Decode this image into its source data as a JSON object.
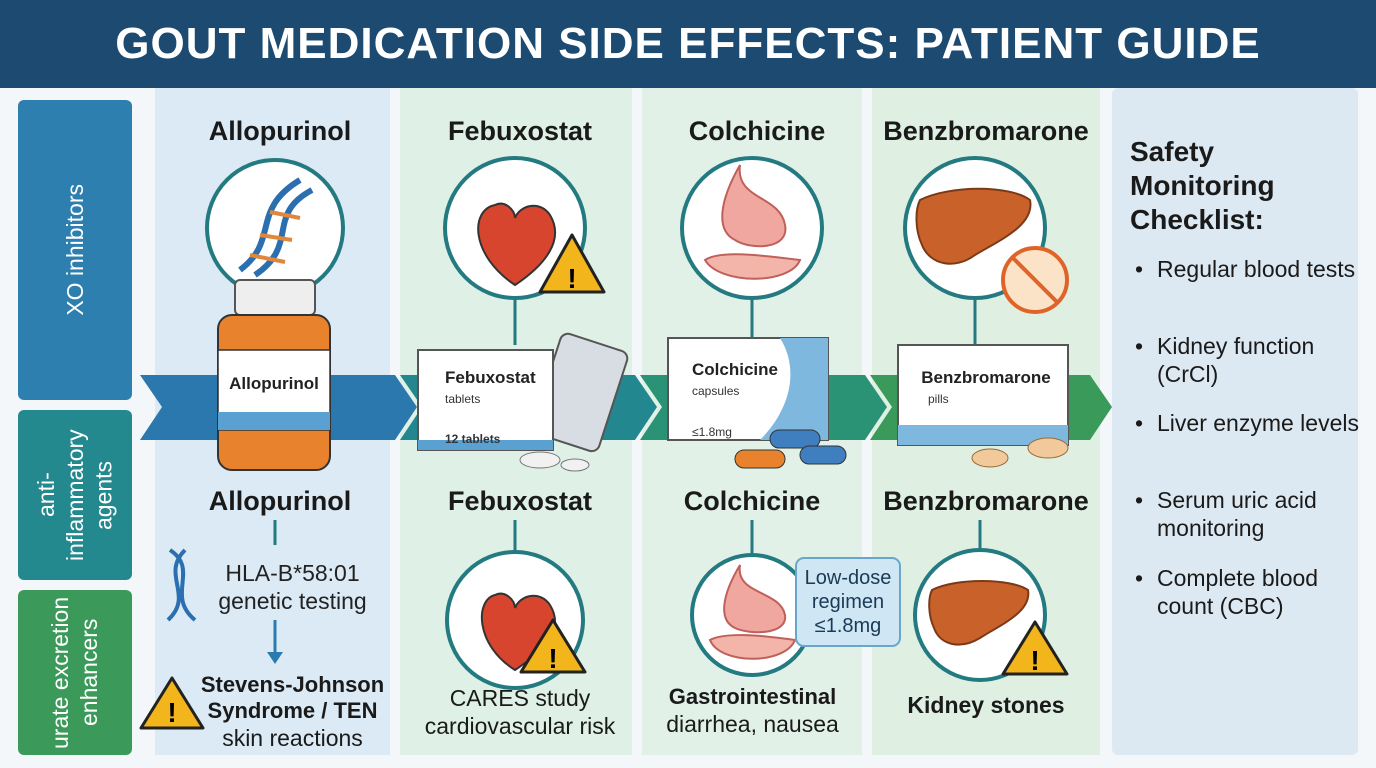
{
  "header": {
    "title": "GOUT MEDICATION SIDE EFFECTS: PATIENT GUIDE"
  },
  "sidebar": {
    "groups": [
      "XO inhibitors",
      "anti-inflammatory agents",
      "urate excretion enhancers"
    ]
  },
  "drugs": [
    {
      "name": "Allopurinol",
      "bottle_label": "Allopurinol",
      "section_name": "Allopurinol",
      "test": "HLA-B*58:01 genetic testing",
      "risk": "Stevens-Johnson Syndrome / TEN",
      "risk_detail": "skin reactions"
    },
    {
      "name": "Febuxostat",
      "package_label": "Febuxostat",
      "package_form": "tablets",
      "package_count": "12 tablets",
      "section_name": "Febuxostat",
      "note": "CARES study cardiovascular risk"
    },
    {
      "name": "Colchicine",
      "package_label": "Colchicine",
      "package_form": "capsules",
      "package_dose": "≤1.8mg",
      "section_name": "Colchicine",
      "callout": "Low-dose regimen ≤1.8mg",
      "effect": "Gastrointestinal",
      "effect_detail": "diarrhea, nausea"
    },
    {
      "name": "Benzbromarone",
      "package_label": "Benzbromarone",
      "package_form": "pills",
      "section_name": "Benzbromarone",
      "effect": "Kidney stones"
    }
  ],
  "checklist": {
    "title": "Safety Monitoring Checklist:",
    "items": [
      "Regular blood tests",
      "Kidney function (CrCl)",
      "Liver enzyme levels",
      "Serum uric acid monitoring",
      "Complete blood count (CBC)"
    ]
  }
}
